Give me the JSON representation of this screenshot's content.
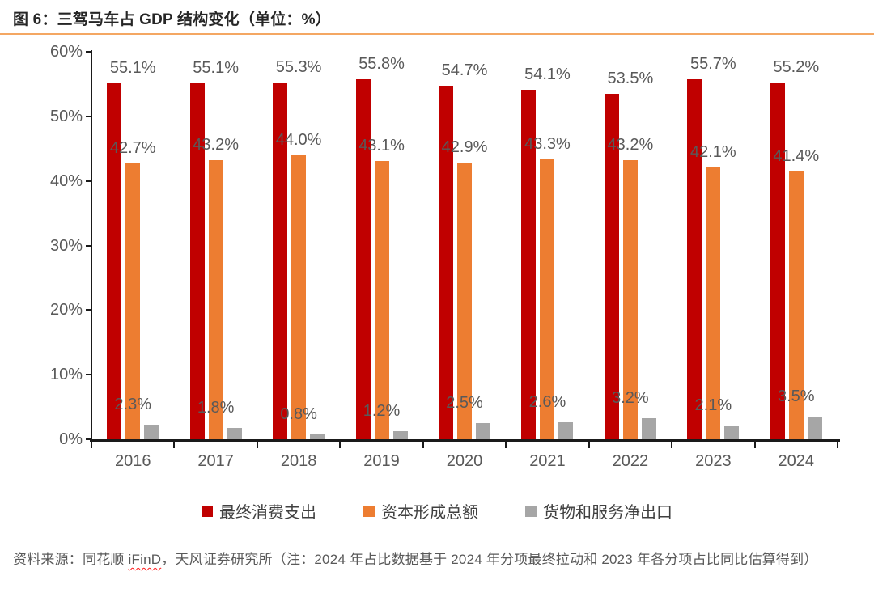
{
  "page_title": "图 6：三驾马车占 GDP 结构变化（单位：%）",
  "chart_data": {
    "type": "bar",
    "title": "图 6：三驾马车占 GDP 结构变化（单位：%）",
    "categories": [
      "2016",
      "2017",
      "2018",
      "2019",
      "2020",
      "2021",
      "2022",
      "2023",
      "2024"
    ],
    "series": [
      {
        "name": "最终消费支出",
        "color": "#C00000",
        "values": [
          55.1,
          55.1,
          55.3,
          55.8,
          54.7,
          54.1,
          53.5,
          55.7,
          55.2
        ]
      },
      {
        "name": "资本形成总额",
        "color": "#ED7D31",
        "values": [
          42.7,
          43.2,
          44.0,
          43.1,
          42.9,
          43.3,
          43.2,
          42.1,
          41.4
        ]
      },
      {
        "name": "货物和服务净出口",
        "color": "#A6A6A6",
        "values": [
          2.3,
          1.8,
          0.8,
          1.2,
          2.5,
          2.6,
          3.2,
          2.1,
          3.5
        ]
      }
    ],
    "ylim": [
      0,
      60
    ],
    "yticks": [
      {
        "value": 0,
        "label": "0%"
      },
      {
        "value": 10,
        "label": "10%"
      },
      {
        "value": 20,
        "label": "20%"
      },
      {
        "value": 30,
        "label": "30%"
      },
      {
        "value": 40,
        "label": "40%"
      },
      {
        "value": 50,
        "label": "50%"
      },
      {
        "value": 60,
        "label": "60%"
      }
    ],
    "grid": false,
    "legend_position": "bottom",
    "data_label_suffix": "%"
  },
  "footer": {
    "source_prefix": "资料来源：同花顺 ",
    "source_highlight": "iFinD",
    "source_suffix": "，天风证券研究所（注：2024 年占比数据基于 2024 年分项最终拉动和 2023 年各分项占比同比估算得到）"
  },
  "colors": {
    "title_text": "#262626",
    "divider": "#F4A763",
    "axis": "#1A1A1A",
    "tick_label": "#595959",
    "data_label": "#595959",
    "legend_text": "#404040",
    "footer_text": "#595959",
    "spellcheck_underline": "#FF1A1A",
    "series_red": "#C00000",
    "series_orange": "#ED7D31",
    "series_gray": "#A6A6A6"
  }
}
